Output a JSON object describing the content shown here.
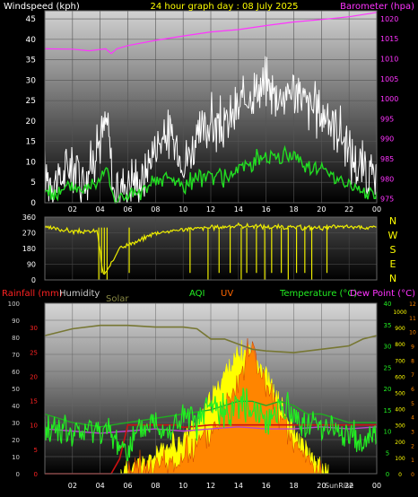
{
  "chart_data": [
    {
      "id": "wind-baro",
      "type": "line",
      "title": "24 hour graph day : 08 July 2025",
      "left_axis_label": "Windspeed (kph)",
      "right_axis_label": "Barometer (hpa)",
      "x_ticks": [
        "02",
        "04",
        "06",
        "08",
        "10",
        "12",
        "14",
        "16",
        "18",
        "20",
        "22",
        "00"
      ],
      "x_range_hours": [
        0,
        24
      ],
      "left_ticks": [
        0,
        5,
        10,
        15,
        20,
        25,
        30,
        35,
        40,
        45
      ],
      "left_range": [
        0,
        47
      ],
      "right_ticks": [
        975,
        980,
        985,
        990,
        995,
        1000,
        1005,
        1010,
        1015,
        1020
      ],
      "right_range": [
        974,
        1022
      ],
      "series": [
        {
          "key": "barometer",
          "color": "#ff33ff",
          "axis": "right",
          "x": [
            0,
            2,
            3.2,
            4.4,
            4.8,
            5.2,
            6,
            8,
            10,
            12,
            14,
            16,
            18,
            20,
            22,
            24
          ],
          "y": [
            1012.5,
            1012.4,
            1012.0,
            1012.5,
            1011.3,
            1012.5,
            1013.3,
            1014.6,
            1015.7,
            1016.7,
            1017.3,
            1018.3,
            1019.2,
            1019.8,
            1020.5,
            1021.6
          ]
        },
        {
          "key": "gust",
          "color": "#ffffff",
          "axis": "left",
          "x": [
            0,
            1,
            2,
            3,
            4,
            4.5,
            5,
            6,
            7,
            8,
            9,
            10,
            11,
            12,
            13,
            14,
            15,
            16,
            17,
            18,
            19,
            20,
            21,
            22,
            23,
            24
          ],
          "y": [
            7,
            5,
            10,
            6,
            16,
            20,
            2,
            6,
            5,
            14,
            17,
            10,
            15,
            20,
            18,
            23,
            27,
            29,
            26,
            28,
            24,
            22,
            20,
            12,
            8,
            5
          ]
        },
        {
          "key": "average",
          "color": "#22dd22",
          "axis": "left",
          "x": [
            0,
            1,
            2,
            3,
            4,
            4.5,
            5,
            6,
            7,
            8,
            9,
            10,
            11,
            12,
            13,
            14,
            15,
            16,
            17,
            18,
            19,
            20,
            21,
            22,
            23,
            24
          ],
          "y": [
            3,
            2,
            4,
            3,
            7,
            9,
            0,
            2,
            2,
            5,
            6,
            4,
            6,
            7,
            6,
            8,
            10,
            12,
            11,
            12,
            9,
            8,
            7,
            4,
            3,
            2
          ]
        }
      ]
    },
    {
      "id": "direction",
      "type": "line",
      "x_ticks": [
        "02",
        "04",
        "06",
        "08",
        "10",
        "12",
        "14",
        "16",
        "18",
        "20",
        "22",
        "00"
      ],
      "x_range_hours": [
        0,
        24
      ],
      "left_ticks": [
        0,
        90,
        180,
        270,
        360
      ],
      "left_range": [
        0,
        360
      ],
      "compass_labels": [
        "N",
        "W",
        "S",
        "E",
        "N"
      ],
      "series": [
        {
          "key": "direction",
          "color": "#eeee00",
          "x": [
            0,
            1,
            2,
            3,
            3.8,
            4.2,
            4.6,
            5.0,
            5.4,
            6,
            7,
            7.5,
            8,
            10,
            12,
            14,
            16,
            18,
            20,
            22,
            24
          ],
          "y": [
            300,
            290,
            280,
            275,
            280,
            30,
            60,
            120,
            190,
            200,
            230,
            255,
            270,
            290,
            300,
            310,
            305,
            300,
            300,
            305,
            300
          ]
        }
      ]
    },
    {
      "id": "rain-temp",
      "type": "line",
      "labels": {
        "rainfall": "Rainfall (mm)",
        "humidity": "Humidity",
        "solar": "Solar",
        "aqi": "AQI",
        "uv": "UV",
        "temperature": "Temperature (°C)",
        "dewpoint": "Dew Point (°C)",
        "sunrise": "SunRise",
        "sunset": "SunSet"
      },
      "x_ticks": [
        "02",
        "04",
        "06",
        "08",
        "10",
        "12",
        "14",
        "16",
        "18",
        "20",
        "22",
        "00"
      ],
      "x_range_hours": [
        0,
        24
      ],
      "rain_ticks": [
        0,
        5,
        10,
        15,
        20,
        25,
        30
      ],
      "rain_range": [
        0,
        35
      ],
      "humidity_ticks": [
        0,
        10,
        20,
        30,
        40,
        50,
        60,
        70,
        80,
        90,
        100
      ],
      "humidity_range": [
        0,
        100
      ],
      "temp_ticks": [
        0,
        5,
        10,
        15,
        20,
        25,
        30,
        35,
        40
      ],
      "temp_range": [
        0,
        40
      ],
      "solar_ticks": [
        0,
        100,
        200,
        300,
        400,
        500,
        600,
        700,
        800,
        900,
        1000
      ],
      "solar_range": [
        0,
        1050
      ],
      "uv_ticks": [
        0,
        1,
        2,
        3,
        4,
        5,
        6,
        7,
        8,
        9,
        10,
        11,
        12
      ],
      "uv_range": [
        0,
        12
      ],
      "series": [
        {
          "key": "humidity",
          "color": "#777733",
          "axis": "humidity",
          "x": [
            0,
            2,
            4,
            6,
            8,
            10,
            11,
            12,
            13,
            14,
            15,
            16,
            18,
            20,
            22,
            23,
            24
          ],
          "y": [
            81,
            85,
            87,
            87,
            86,
            86,
            85,
            79,
            79,
            76,
            73,
            72,
            71,
            73,
            75,
            79,
            81
          ]
        },
        {
          "key": "temperature",
          "color": "#22aa22",
          "axis": "temp",
          "x": [
            0,
            2,
            4,
            6,
            8,
            10,
            12,
            13,
            14,
            15,
            16,
            17,
            18,
            19,
            20,
            22,
            24
          ],
          "y": [
            14,
            12,
            11,
            12,
            13,
            14,
            15,
            16,
            17,
            17,
            16,
            17,
            16,
            14,
            14,
            12,
            12
          ]
        },
        {
          "key": "dewpoint",
          "color": "#bb44cc",
          "axis": "temp",
          "x": [
            0,
            2,
            4,
            6,
            8,
            10,
            12,
            14,
            16,
            18,
            20,
            22,
            24
          ],
          "y": [
            10.5,
            10,
            9.5,
            10,
            10.5,
            10,
            10.5,
            11,
            10.5,
            10.5,
            11,
            10.5,
            11
          ]
        },
        {
          "key": "rainfall",
          "color": "#cc1111",
          "axis": "rain",
          "x": [
            0,
            4.8,
            5.4,
            6,
            9.5,
            10,
            12,
            14,
            16,
            18,
            20,
            22,
            24
          ],
          "y": [
            0,
            0,
            3,
            10,
            10,
            9.5,
            10,
            10,
            10,
            10,
            10,
            10,
            10
          ]
        },
        {
          "key": "solar",
          "color": "#ffff00",
          "axis": "solar",
          "x": [
            5.5,
            6,
            7,
            8,
            9,
            10,
            11,
            12,
            13,
            14,
            15,
            16,
            17,
            18,
            19,
            20,
            20.5
          ],
          "y": [
            0,
            30,
            60,
            110,
            160,
            220,
            310,
            440,
            620,
            720,
            760,
            620,
            420,
            250,
            120,
            40,
            0
          ]
        },
        {
          "key": "uv",
          "color": "#ff6600",
          "axis": "uv",
          "x": [
            6,
            8,
            10,
            11,
            12,
            13,
            14,
            15,
            16,
            17,
            18,
            19,
            20
          ],
          "y": [
            0,
            0.5,
            1,
            2,
            3,
            5,
            7,
            9,
            6,
            4,
            2,
            1,
            0
          ]
        },
        {
          "key": "aqi",
          "color": "#22ee22",
          "axis": "temp",
          "x": [
            0,
            1,
            2,
            3,
            4,
            5,
            6,
            7,
            8,
            9,
            10,
            11,
            12,
            13,
            14,
            15,
            16,
            17,
            18,
            19,
            20,
            21,
            22,
            23,
            24
          ],
          "y": [
            10,
            11,
            9,
            10,
            11,
            8,
            6,
            10,
            12,
            10,
            13,
            12,
            16,
            14,
            17,
            15,
            13,
            16,
            14,
            11,
            12,
            10,
            9,
            7,
            10
          ]
        }
      ]
    }
  ]
}
